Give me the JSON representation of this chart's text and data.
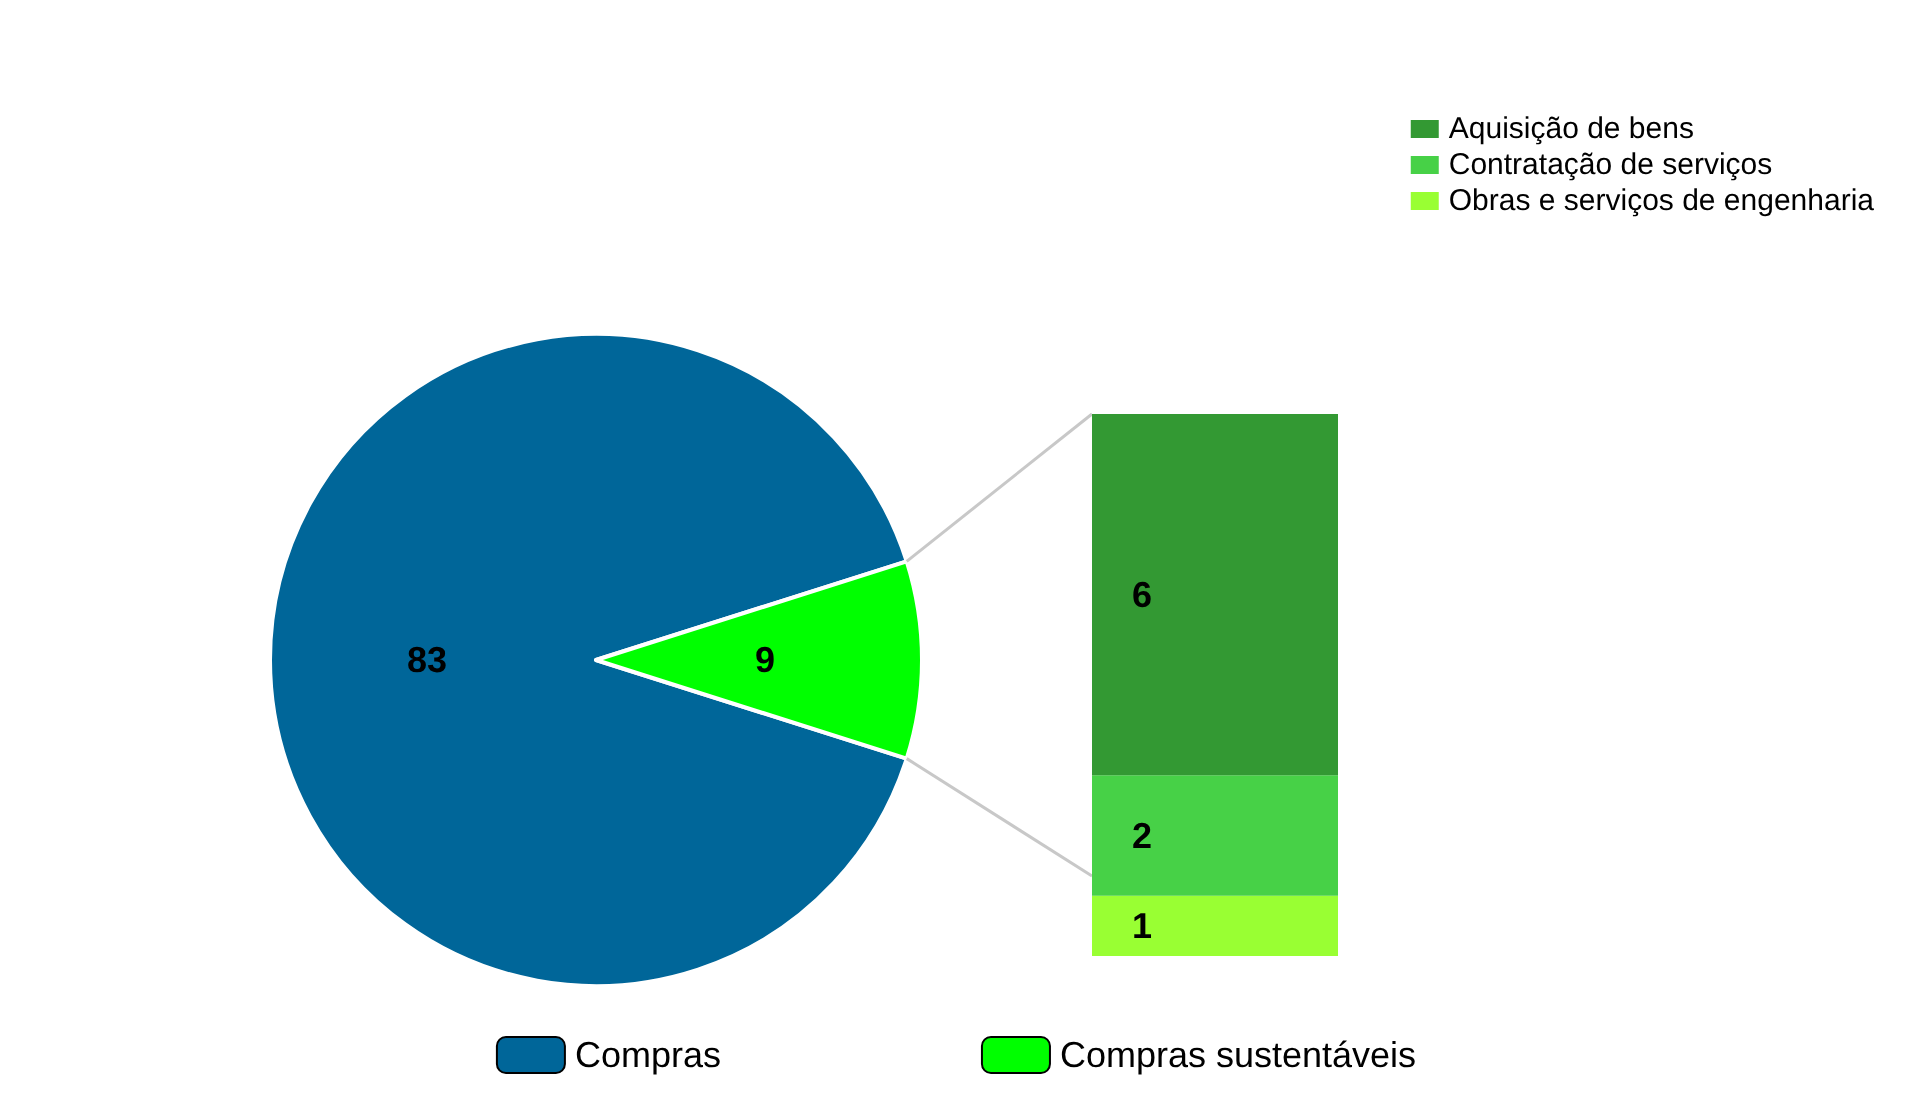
{
  "chart_data": [
    {
      "type": "pie",
      "categories": [
        "Compras",
        "Compras sustentáveis"
      ],
      "values": [
        83,
        9
      ],
      "colors": [
        "#006699",
        "#00ff00"
      ],
      "data_labels": true,
      "legend": "bottom"
    },
    {
      "type": "bar",
      "stacked": true,
      "categories": [
        null
      ],
      "data_labels": true,
      "legend": "top right",
      "series": [
        {
          "name": "Obras e serviços de engenharia",
          "color": "#99ff33",
          "values": [
            1
          ]
        },
        {
          "name": "Contratação de serviços",
          "color": "#47d147",
          "values": [
            2
          ]
        },
        {
          "name": "Aquisição de bens",
          "color": "#339933",
          "values": [
            6
          ]
        }
      ]
    }
  ]
}
